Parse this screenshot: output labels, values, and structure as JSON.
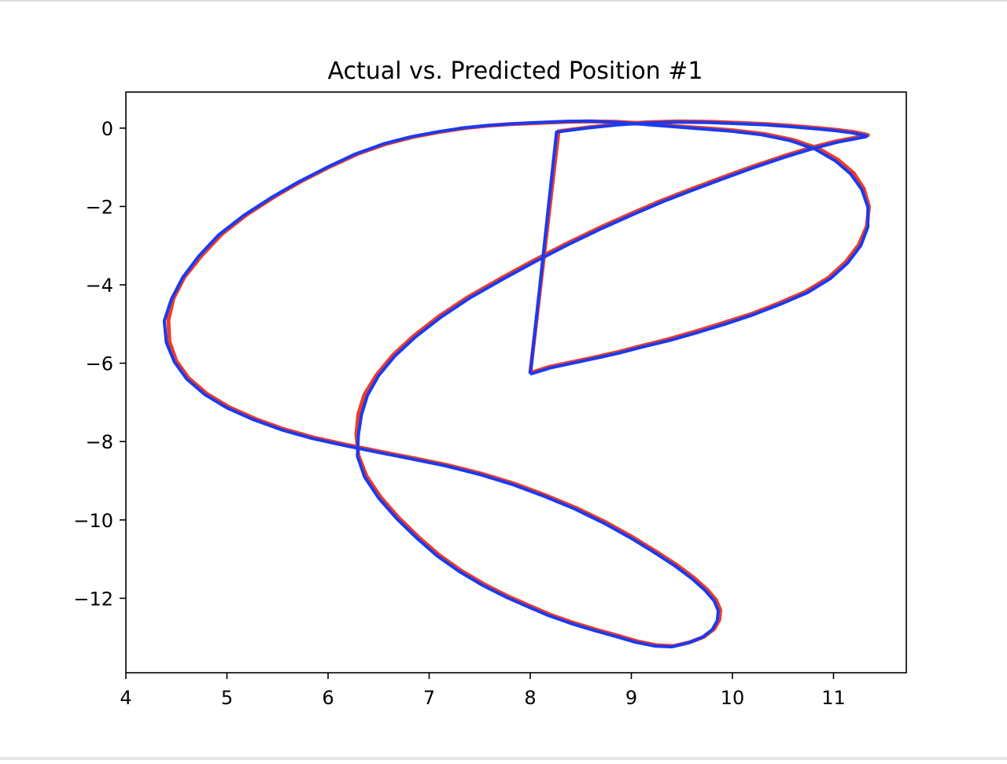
{
  "chart_data": {
    "type": "line",
    "title": "Actual vs. Predicted Position #1",
    "xlabel": "",
    "ylabel": "",
    "xlim": [
      4,
      11.72
    ],
    "ylim": [
      -13.9,
      0.92
    ],
    "x_ticks": [
      4,
      5,
      6,
      7,
      8,
      9,
      10,
      11
    ],
    "x_tick_labels": [
      "4",
      "5",
      "6",
      "7",
      "8",
      "9",
      "10",
      "11"
    ],
    "y_ticks": [
      0,
      -2,
      -4,
      -6,
      -8,
      -10,
      -12
    ],
    "y_tick_labels": [
      "0",
      "−2",
      "−4",
      "−6",
      "−8",
      "−10",
      "−12"
    ],
    "grid": false,
    "legend": "none",
    "series": [
      {
        "color": "#ee3b2a",
        "x": [
          8.0,
          8.18,
          8.4,
          8.62,
          8.86,
          9.1,
          9.35,
          9.62,
          9.9,
          10.18,
          10.45,
          10.72,
          10.95,
          11.12,
          11.25,
          11.33,
          11.35,
          11.3,
          11.2,
          11.05,
          10.85,
          10.6,
          10.32,
          10.02,
          9.72,
          9.42,
          9.12,
          8.85,
          8.6,
          8.38,
          8.18,
          8.0,
          7.8,
          7.58,
          7.35,
          7.1,
          6.85,
          6.58,
          6.3,
          6.02,
          5.74,
          5.47,
          5.2,
          4.95,
          4.75,
          4.58,
          4.47,
          4.42,
          4.43,
          4.5,
          4.62,
          4.8,
          5.02,
          5.28,
          5.56,
          5.86,
          6.18,
          6.5,
          6.84,
          7.18,
          7.52,
          7.85,
          8.16,
          8.46,
          8.74,
          9.0,
          9.24,
          9.45,
          9.62,
          9.75,
          9.84,
          9.88,
          9.87,
          9.82,
          9.72,
          9.58,
          9.42,
          9.25,
          9.06,
          8.86,
          8.65,
          8.42,
          8.2,
          8.0,
          7.78,
          7.55,
          7.32,
          7.1,
          6.9,
          6.7,
          6.52,
          6.38,
          6.3,
          6.28,
          6.3,
          6.36,
          6.48,
          6.64,
          6.85,
          7.1,
          7.38,
          7.7,
          8.02,
          8.35,
          8.68,
          9.0,
          9.3,
          9.6,
          9.9,
          10.2,
          10.5,
          10.78,
          11.02,
          11.2,
          11.3,
          11.34,
          11.3,
          11.2,
          11.05,
          10.85,
          10.62,
          10.35,
          10.08,
          9.78,
          9.48,
          9.18,
          8.88,
          8.58,
          8.28,
          8.0
        ],
        "y": [
          -6.25,
          -6.1,
          -5.98,
          -5.86,
          -5.72,
          -5.56,
          -5.4,
          -5.2,
          -4.98,
          -4.75,
          -4.48,
          -4.18,
          -3.82,
          -3.42,
          -2.98,
          -2.5,
          -2.0,
          -1.55,
          -1.15,
          -0.82,
          -0.52,
          -0.3,
          -0.15,
          -0.06,
          0.0,
          0.05,
          0.12,
          0.16,
          0.17,
          0.16,
          0.14,
          0.12,
          0.1,
          0.06,
          0.0,
          -0.1,
          -0.22,
          -0.4,
          -0.65,
          -0.98,
          -1.35,
          -1.75,
          -2.2,
          -2.7,
          -3.25,
          -3.8,
          -4.35,
          -4.9,
          -5.45,
          -5.95,
          -6.38,
          -6.78,
          -7.12,
          -7.42,
          -7.68,
          -7.9,
          -8.08,
          -8.25,
          -8.42,
          -8.6,
          -8.82,
          -9.08,
          -9.38,
          -9.7,
          -10.05,
          -10.42,
          -10.8,
          -11.15,
          -11.48,
          -11.78,
          -12.05,
          -12.3,
          -12.55,
          -12.78,
          -12.98,
          -13.12,
          -13.22,
          -13.2,
          -13.1,
          -12.95,
          -12.8,
          -12.62,
          -12.42,
          -12.2,
          -11.95,
          -11.65,
          -11.3,
          -10.9,
          -10.45,
          -9.95,
          -9.42,
          -8.88,
          -8.35,
          -7.82,
          -7.3,
          -6.8,
          -6.3,
          -5.8,
          -5.3,
          -4.8,
          -4.32,
          -3.85,
          -3.4,
          -2.96,
          -2.55,
          -2.18,
          -1.85,
          -1.55,
          -1.26,
          -0.98,
          -0.72,
          -0.5,
          -0.34,
          -0.25,
          -0.2,
          -0.18,
          -0.15,
          -0.1,
          -0.05,
          0.0,
          0.05,
          0.1,
          0.13,
          0.16,
          0.17,
          0.15,
          0.1,
          0.02,
          -0.08,
          -6.25
        ]
      },
      {
        "color": "#1a3af0",
        "x": [
          8.0,
          8.2,
          8.42,
          8.64,
          8.88,
          9.12,
          9.38,
          9.65,
          9.93,
          10.2,
          10.47,
          10.74,
          10.97,
          11.14,
          11.27,
          11.34,
          11.34,
          11.28,
          11.17,
          11.02,
          10.82,
          10.57,
          10.29,
          9.99,
          9.69,
          9.39,
          9.09,
          8.82,
          8.57,
          8.35,
          8.15,
          7.97,
          7.77,
          7.55,
          7.32,
          7.07,
          6.82,
          6.55,
          6.27,
          5.99,
          5.71,
          5.44,
          5.17,
          4.92,
          4.72,
          4.56,
          4.45,
          4.38,
          4.4,
          4.48,
          4.6,
          4.78,
          5.0,
          5.26,
          5.54,
          5.84,
          6.16,
          6.48,
          6.82,
          7.16,
          7.5,
          7.83,
          8.14,
          8.44,
          8.72,
          8.98,
          9.22,
          9.43,
          9.6,
          9.73,
          9.82,
          9.86,
          9.85,
          9.8,
          9.7,
          9.56,
          9.4,
          9.23,
          9.04,
          8.84,
          8.63,
          8.4,
          8.18,
          7.98,
          7.76,
          7.53,
          7.3,
          7.08,
          6.88,
          6.68,
          6.5,
          6.36,
          6.29,
          6.3,
          6.33,
          6.39,
          6.5,
          6.66,
          6.87,
          7.12,
          7.4,
          7.72,
          8.04,
          8.37,
          8.7,
          9.02,
          9.32,
          9.62,
          9.92,
          10.22,
          10.52,
          10.8,
          11.04,
          11.22,
          11.32,
          11.33,
          11.28,
          11.18,
          11.03,
          10.83,
          10.6,
          10.33,
          10.06,
          9.76,
          9.46,
          9.16,
          8.86,
          8.56,
          8.26,
          8.0
        ],
        "y": [
          -6.28,
          -6.12,
          -6.0,
          -5.88,
          -5.74,
          -5.58,
          -5.42,
          -5.22,
          -5.0,
          -4.77,
          -4.5,
          -4.2,
          -3.84,
          -3.44,
          -3.0,
          -2.52,
          -2.02,
          -1.57,
          -1.17,
          -0.84,
          -0.54,
          -0.32,
          -0.17,
          -0.08,
          -0.02,
          0.04,
          0.1,
          0.15,
          0.18,
          0.17,
          0.15,
          0.13,
          0.1,
          0.06,
          0.0,
          -0.1,
          -0.22,
          -0.4,
          -0.66,
          -1.0,
          -1.37,
          -1.77,
          -2.22,
          -2.72,
          -3.27,
          -3.82,
          -4.37,
          -4.92,
          -5.47,
          -5.97,
          -6.4,
          -6.8,
          -7.14,
          -7.44,
          -7.7,
          -7.92,
          -8.1,
          -8.27,
          -8.44,
          -8.62,
          -8.84,
          -9.1,
          -9.4,
          -9.72,
          -10.07,
          -10.44,
          -10.82,
          -11.17,
          -11.5,
          -11.8,
          -12.07,
          -12.32,
          -12.57,
          -12.8,
          -13.0,
          -13.14,
          -13.24,
          -13.22,
          -13.12,
          -12.97,
          -12.82,
          -12.64,
          -12.44,
          -12.22,
          -11.97,
          -11.67,
          -11.32,
          -10.92,
          -10.47,
          -9.97,
          -9.44,
          -8.9,
          -8.37,
          -7.84,
          -7.32,
          -6.82,
          -6.32,
          -5.82,
          -5.32,
          -4.82,
          -4.34,
          -3.87,
          -3.42,
          -2.98,
          -2.57,
          -2.2,
          -1.87,
          -1.57,
          -1.28,
          -1.0,
          -0.74,
          -0.52,
          -0.36,
          -0.27,
          -0.22,
          -0.2,
          -0.17,
          -0.12,
          -0.07,
          -0.02,
          0.03,
          0.08,
          0.11,
          0.14,
          0.15,
          0.13,
          0.08,
          0.0,
          -0.1,
          -6.28
        ]
      }
    ]
  }
}
